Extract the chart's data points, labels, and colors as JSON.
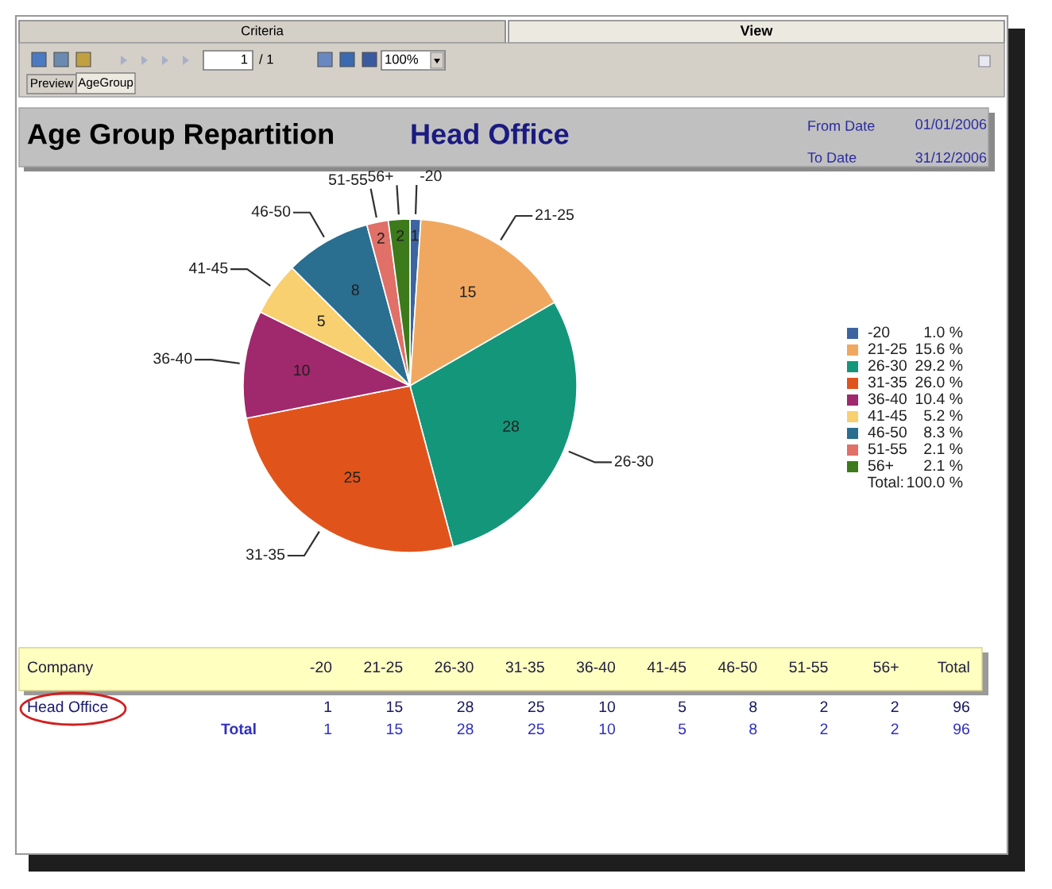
{
  "chart_data": {
    "type": "pie",
    "title": "Age Group Repartition",
    "subtitle": "Head Office",
    "categories": [
      "-20",
      "21-25",
      "26-30",
      "31-35",
      "36-40",
      "41-45",
      "46-50",
      "51-55",
      "56+"
    ],
    "values": [
      1,
      15,
      28,
      25,
      10,
      5,
      8,
      2,
      2
    ],
    "colors": [
      "#3c64a0",
      "#f0a860",
      "#14967a",
      "#e0541c",
      "#a0286c",
      "#f8d070",
      "#2a6e90",
      "#e07068",
      "#3c7a1c"
    ],
    "data_labels": true,
    "legend": "right",
    "annotations": [
      "Criteria",
      "View",
      "Preview",
      "AgeGroup",
      "1",
      "/ 1",
      "100%",
      "From Date",
      "01/01/2006",
      "To Date",
      "31/12/2006",
      "1.0 %",
      "15.6 %",
      "29.2 %",
      "26.0 %",
      "10.4 %",
      "5.2 %",
      "8.3 %",
      "2.1 %",
      "2.1 %",
      "Total:",
      "100.0 %",
      "Company",
      "Total",
      "Head Office",
      "1",
      "15",
      "28",
      "25",
      "10",
      "5",
      "8",
      "2",
      "2",
      "96",
      "Total",
      "1",
      "15",
      "28",
      "25",
      "10",
      "5",
      "8",
      "2",
      "2",
      "96"
    ]
  }
}
